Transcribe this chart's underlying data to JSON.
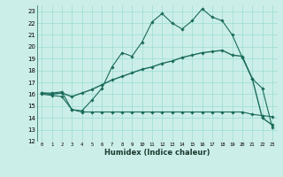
{
  "title": "",
  "xlabel": "Humidex (Indice chaleur)",
  "bg_color": "#cceee8",
  "grid_color": "#99ddd5",
  "line_color": "#1a6b5a",
  "xlim": [
    -0.5,
    23.5
  ],
  "ylim": [
    12,
    23.5
  ],
  "yticks": [
    12,
    13,
    14,
    15,
    16,
    17,
    18,
    19,
    20,
    21,
    22,
    23
  ],
  "xticks": [
    0,
    1,
    2,
    3,
    4,
    5,
    6,
    7,
    8,
    9,
    10,
    11,
    12,
    13,
    14,
    15,
    16,
    17,
    18,
    19,
    20,
    21,
    22,
    23
  ],
  "line1_x": [
    0,
    1,
    2,
    3,
    4,
    5,
    6,
    7,
    8,
    9,
    10,
    11,
    12,
    13,
    14,
    15,
    16,
    17,
    18,
    19,
    20,
    21,
    22,
    23
  ],
  "line1_y": [
    16.1,
    16.1,
    16.2,
    14.7,
    14.6,
    15.5,
    16.5,
    18.3,
    19.5,
    19.2,
    20.4,
    22.1,
    22.8,
    22.0,
    21.5,
    22.2,
    23.2,
    22.5,
    22.2,
    21.0,
    19.1,
    17.3,
    16.5,
    13.2
  ],
  "line2_x": [
    0,
    1,
    2,
    3,
    4,
    5,
    6,
    7,
    8,
    9,
    10,
    11,
    12,
    13,
    14,
    15,
    16,
    17,
    18,
    19,
    20,
    21,
    22,
    23
  ],
  "line2_y": [
    16.1,
    16.0,
    16.1,
    15.8,
    16.1,
    16.4,
    16.8,
    17.2,
    17.5,
    17.8,
    18.1,
    18.3,
    18.6,
    18.8,
    19.1,
    19.3,
    19.5,
    19.6,
    19.7,
    19.3,
    19.2,
    17.3,
    14.0,
    13.4
  ],
  "line3_x": [
    0,
    1,
    2,
    3,
    4,
    5,
    6,
    7,
    8,
    9,
    10,
    11,
    12,
    13,
    14,
    15,
    16,
    17,
    18,
    19,
    20,
    21,
    22,
    23
  ],
  "line3_y": [
    16.0,
    15.9,
    15.8,
    14.7,
    14.5,
    14.5,
    14.5,
    14.5,
    14.5,
    14.5,
    14.5,
    14.5,
    14.5,
    14.5,
    14.5,
    14.5,
    14.5,
    14.5,
    14.5,
    14.5,
    14.5,
    14.3,
    14.2,
    14.1
  ]
}
